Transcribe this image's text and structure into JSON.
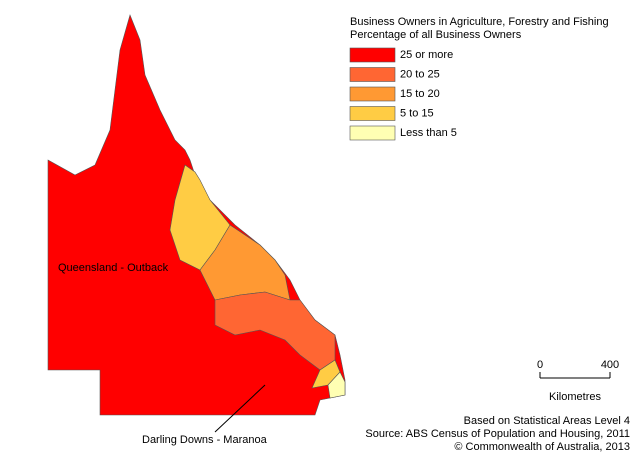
{
  "legend": {
    "title": [
      "Business Owners in Agriculture, Forestry and Fishing",
      "Percentage of all Business Owners"
    ],
    "items": [
      {
        "label": "25 or more",
        "color": "#ff0000"
      },
      {
        "label": "20 to 25",
        "color": "#ff6633"
      },
      {
        "label": "15 to 20",
        "color": "#ff9933"
      },
      {
        "label": "5 to 15",
        "color": "#ffcc44"
      },
      {
        "label": "Less than 5",
        "color": "#ffffb3"
      }
    ]
  },
  "labels": {
    "outback": "Queensland - Outback",
    "darling": "Darling Downs - Maranoa"
  },
  "scale": {
    "start": "0",
    "end": "400",
    "unit": "Kilometres"
  },
  "notes": [
    "Based on Statistical Areas Level 4",
    "Source: ABS Census of Population and Housing, 2011",
    "© Commonwealth of Australia, 2013"
  ]
}
